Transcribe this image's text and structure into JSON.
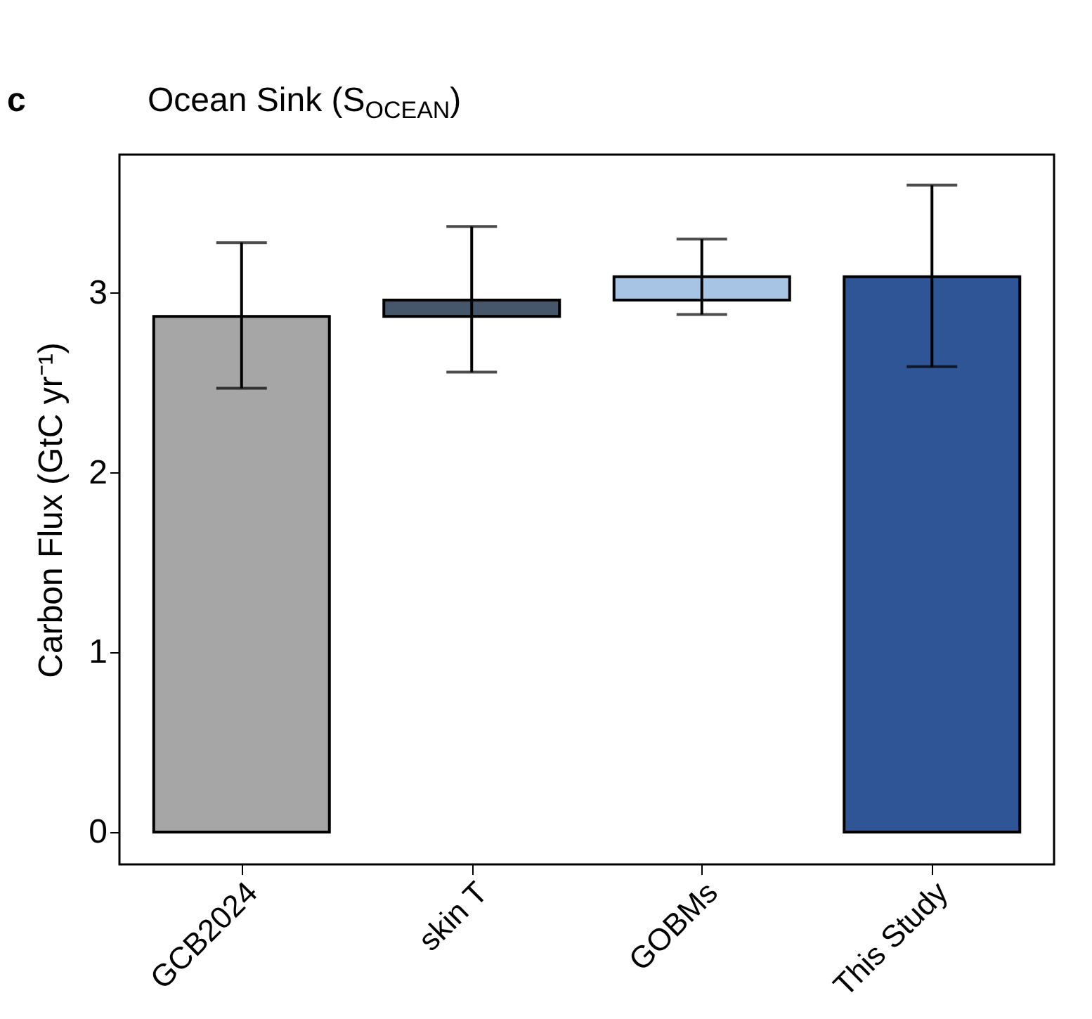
{
  "chart_data": {
    "type": "bar",
    "title": "Ocean Sink (S$_{OCEAN}$)",
    "ylabel": "Carbon Flux (GtC yr⁻¹)",
    "annotations": [
      "c"
    ],
    "categories": [
      "GCB2024",
      "skin T",
      "GOBMs",
      "This Study"
    ],
    "values": [
      2.87,
      0.09,
      0.13,
      3.09
    ],
    "base": [
      0,
      2.87,
      2.96,
      0
    ],
    "colors": [
      "#a6a6a6",
      "#47576b",
      "#a7c4e5",
      "#2f5597"
    ],
    "errors": [
      [
        2.47,
        3.28
      ],
      [
        2.56,
        3.37
      ],
      [
        2.88,
        3.3
      ],
      [
        2.59,
        3.6
      ]
    ],
    "ylim": [
      -0.18,
      3.77
    ],
    "yticks": [
      0,
      1,
      2,
      3
    ],
    "grid": false
  }
}
